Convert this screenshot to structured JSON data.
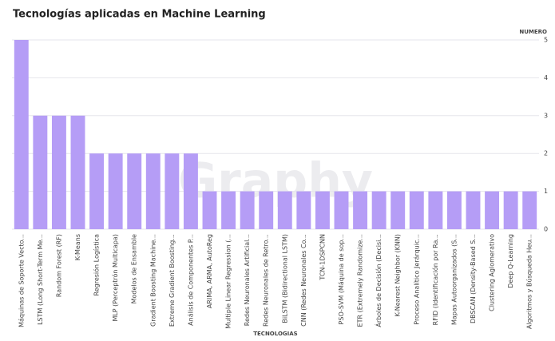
{
  "chart_data": {
    "type": "bar",
    "title": "Tecnologías  aplicadas en Machine Learning",
    "watermark": "Graphy",
    "y_label": "NUMERO",
    "x_label": "TECNOLOGIAS",
    "categories": [
      "Máquinas de Soporte Vecto...",
      "LSTM (Long Short-Term Me...",
      "Random Forest (RF)",
      "K-Means",
      "Regresión Logística",
      "MLP (Perceptrón Multicapa)",
      "Modelos de Ensamble",
      "Gradient Boosting Machine...",
      "Extreme Gradient Boosting...",
      "Análisis de Componentes P...",
      "ARIMA, ARMA, AutoReg",
      "Multiple Linear Regression (...",
      "Redes Neuronales Artificial...",
      "Redes Neuronales de Retro...",
      "BiLSTM (Bidirectional LSTM)",
      "CNN (Redes Neuronales Co...",
      "TCN-1DSPCNN",
      "PSO-SVM (Máquina de sop...",
      "ETR (Extremely Randomize...",
      "Árboles de Decisión (Decisi...",
      "K-Nearest Neighbor (KNN)",
      "Proceso Analítico Jerárquic...",
      "RFID (Identificación por Ra...",
      "Mapas Autoorganizados (S...",
      "DBSCAN (Density-Based S...",
      "Clustering Aglomerativo",
      "Deep Q-Learning",
      "Algoritmos y Búsqueda Heu..."
    ],
    "values": [
      5,
      3,
      3,
      3,
      2,
      2,
      2,
      2,
      2,
      2,
      1,
      1,
      1,
      1,
      1,
      1,
      1,
      1,
      1,
      1,
      1,
      1,
      1,
      1,
      1,
      1,
      1,
      1
    ],
    "color": "#b59df6",
    "ylim": [
      0,
      5
    ],
    "yticks": [
      0,
      1,
      2,
      3,
      4,
      5
    ],
    "grid": true
  }
}
